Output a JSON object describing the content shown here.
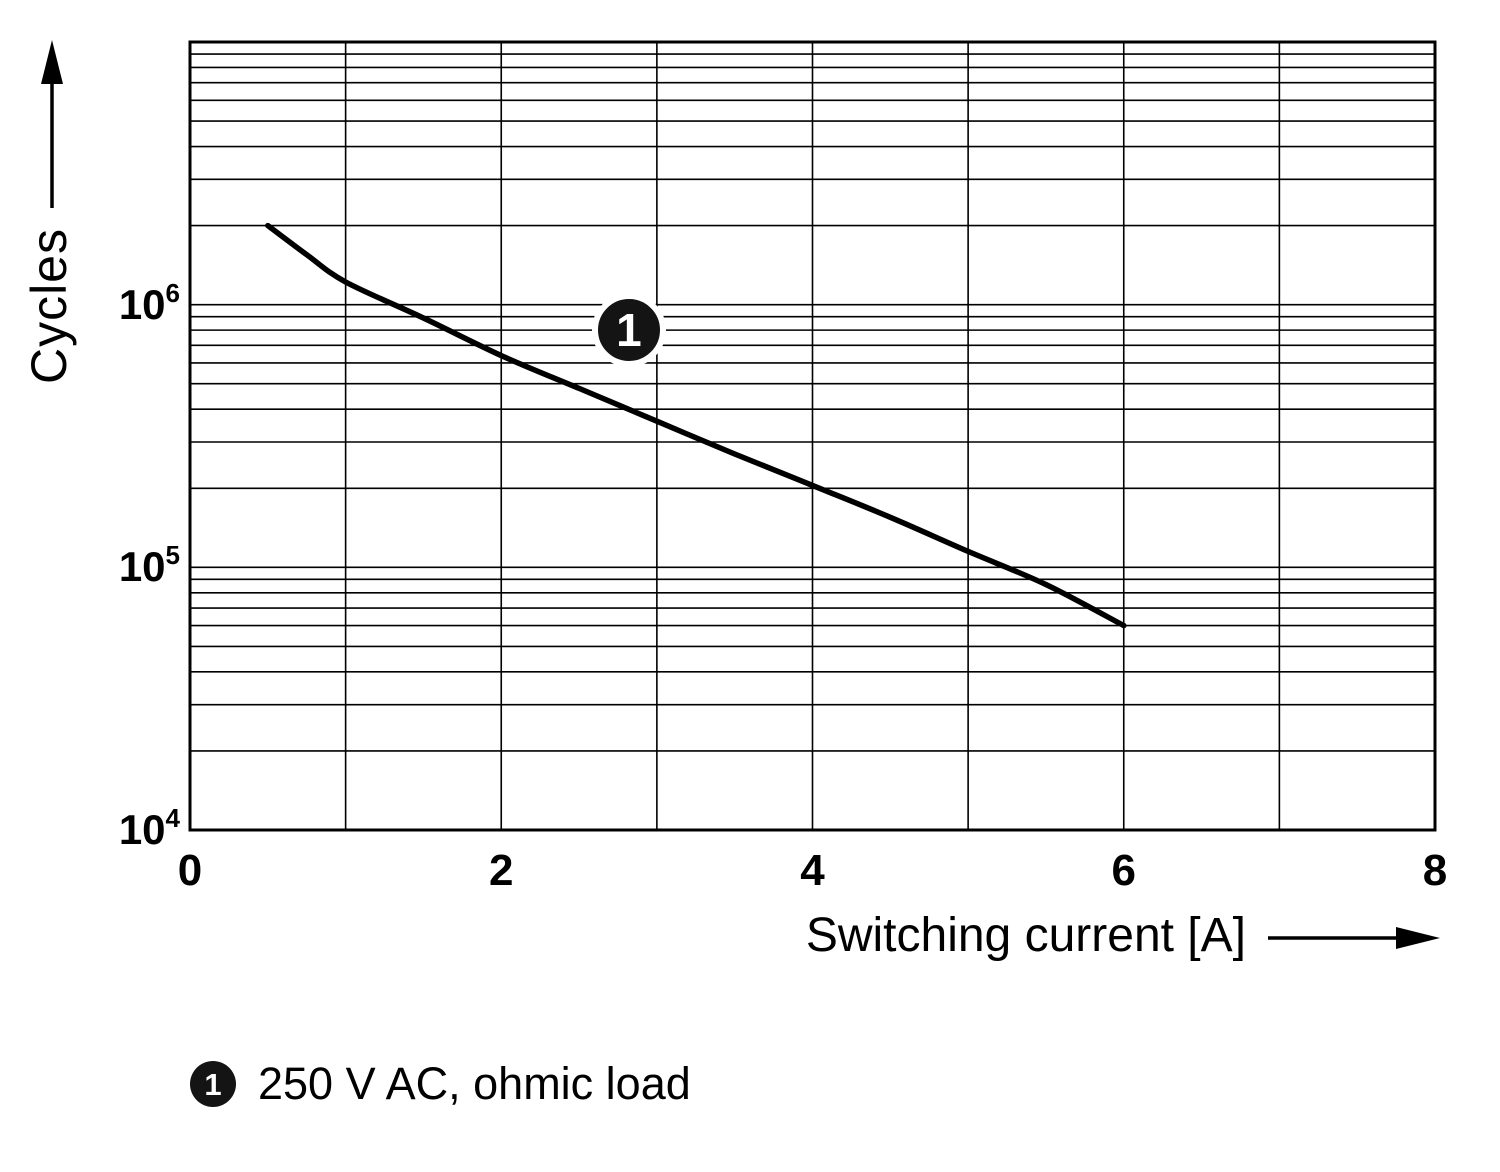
{
  "chart_data": {
    "type": "line",
    "title": "",
    "xlabel": "Switching current [A]",
    "ylabel": "Cycles",
    "xlim": [
      0,
      8
    ],
    "ylim_log10": [
      4,
      7
    ],
    "y_scale": "log",
    "x_grid_step": 1,
    "grid": true,
    "line_color": "#000000",
    "x_ticks": [
      {
        "value": 0,
        "label": "0"
      },
      {
        "value": 2,
        "label": "2"
      },
      {
        "value": 4,
        "label": "4"
      },
      {
        "value": 6,
        "label": "6"
      },
      {
        "value": 8,
        "label": "8"
      }
    ],
    "y_ticks": [
      {
        "exp": 4,
        "base": "10",
        "sup": "4"
      },
      {
        "exp": 5,
        "base": "10",
        "sup": "5"
      },
      {
        "exp": 6,
        "base": "10",
        "sup": "6"
      }
    ],
    "series": [
      {
        "name": "1",
        "label": "250 V AC, ohmic load",
        "points": [
          [
            0.5,
            2000000
          ],
          [
            0.75,
            1550000
          ],
          [
            1.0,
            1220000
          ],
          [
            1.5,
            890000
          ],
          [
            2.0,
            640000
          ],
          [
            2.5,
            480000
          ],
          [
            3.0,
            360000
          ],
          [
            3.5,
            270000
          ],
          [
            4.0,
            205000
          ],
          [
            4.5,
            155000
          ],
          [
            5.0,
            115000
          ],
          [
            5.5,
            86000
          ],
          [
            6.0,
            60000
          ]
        ]
      }
    ],
    "annotation": {
      "x": 2.82,
      "y": 800000,
      "label": "1"
    },
    "legend_position": "bottom-left"
  },
  "legend": {
    "marker_label": "1",
    "text": "250 V AC, ohmic load"
  }
}
